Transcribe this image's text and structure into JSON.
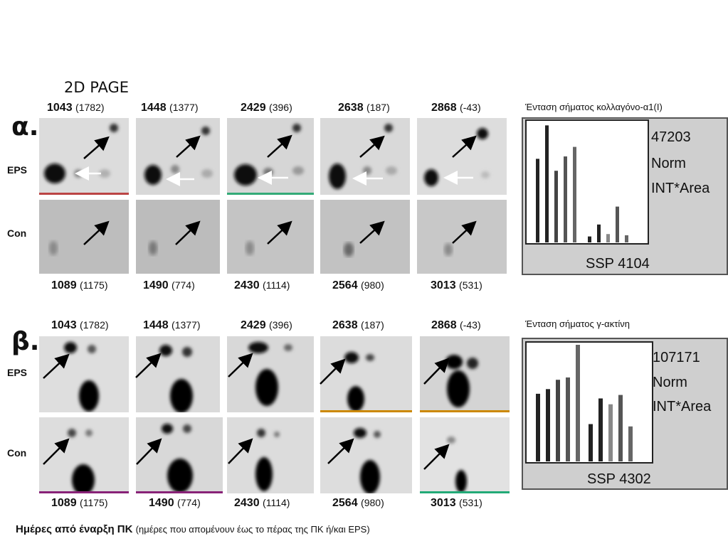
{
  "figure_title": "2D PAGE",
  "panels": [
    {
      "letter": "α.",
      "row_labels": [
        "EPS",
        "Con"
      ],
      "top_labels": [
        {
          "id": "1043",
          "days": "(1782)"
        },
        {
          "id": "1448",
          "days": "(1377)"
        },
        {
          "id": "2429",
          "days": "(396)"
        },
        {
          "id": "2638",
          "days": "(187)"
        },
        {
          "id": "2868",
          "days": "(-43)"
        }
      ],
      "bottom_labels": [
        {
          "id": "1089",
          "days": "(1175)"
        },
        {
          "id": "1490",
          "days": "(774)"
        },
        {
          "id": "2430",
          "days": "(1114)"
        },
        {
          "id": "2564",
          "days": "(980)"
        },
        {
          "id": "3013",
          "days": "(531)"
        }
      ],
      "chart_title": "Ένταση σήματος κολλαγόνο-α1(I)",
      "chart_value": "47203",
      "chart_norm": "Norm",
      "chart_area": "INT*Area",
      "chart_ssp": "SSP 4104"
    },
    {
      "letter": "β.",
      "row_labels": [
        "EPS",
        "Con"
      ],
      "top_labels": [
        {
          "id": "1043",
          "days": "(1782)"
        },
        {
          "id": "1448",
          "days": "(1377)"
        },
        {
          "id": "2429",
          "days": "(396)"
        },
        {
          "id": "2638",
          "days": "(187)"
        },
        {
          "id": "2868",
          "days": "(-43)"
        }
      ],
      "bottom_labels": [
        {
          "id": "1089",
          "days": "(1175)"
        },
        {
          "id": "1490",
          "days": "(774)"
        },
        {
          "id": "2430",
          "days": "(1114)"
        },
        {
          "id": "2564",
          "days": "(980)"
        },
        {
          "id": "3013",
          "days": "(531)"
        }
      ],
      "chart_title": "Ένταση σήματος γ-ακτίνη",
      "chart_value": "107171",
      "chart_norm": "Norm",
      "chart_area": "INT*Area",
      "chart_ssp": "SSP 4302"
    }
  ],
  "footer": {
    "main": "Ημέρες από έναρξη ΠΚ",
    "sub": "(ημέρες που απομένουν έως το πέρας της ΠΚ ή/και EPS)"
  },
  "chart_data": [
    {
      "type": "bar",
      "title": "Ένταση σήματος κολλαγόνο-α1(I)",
      "series": [
        {
          "values": [
            0.7,
            0.98,
            0.6,
            0.72,
            0.8
          ]
        },
        {
          "values": [
            0.05,
            0.15,
            0.07,
            0.3,
            0.06
          ]
        }
      ],
      "ylim": [
        0,
        1
      ]
    },
    {
      "type": "bar",
      "title": "Ένταση σήματος γ-ακτίνη",
      "series": [
        {
          "values": [
            0.58,
            0.62,
            0.7,
            0.72,
            1.0
          ]
        },
        {
          "values": [
            0.32,
            0.54,
            0.49,
            0.57,
            0.3
          ]
        }
      ],
      "ylim": [
        0,
        1
      ]
    }
  ]
}
